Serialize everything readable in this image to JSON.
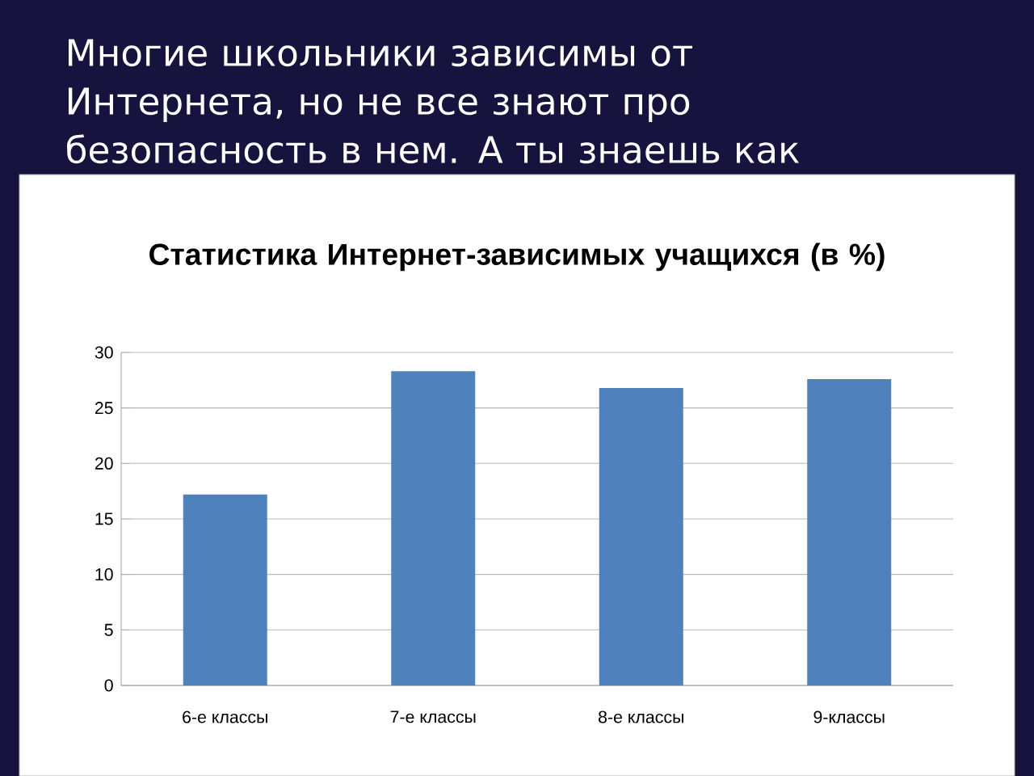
{
  "chart_data": {
    "type": "bar",
    "title": "Статистика Интернет-зависимых учащихся (в %)",
    "annotations": [
      "Многие школьники зависимы от Интернета, но не все знают про безопасность в нем. А ты знаешь как"
    ],
    "categories": [
      "6-е классы",
      "7-е классы",
      "8-е классы",
      "9-классы"
    ],
    "values": [
      17.2,
      28.3,
      26.8,
      27.6
    ],
    "color": "#4f81bd",
    "ylim": [
      0,
      30
    ],
    "yticks": [
      0,
      5,
      10,
      15,
      20,
      25,
      30
    ],
    "grid": "y"
  }
}
